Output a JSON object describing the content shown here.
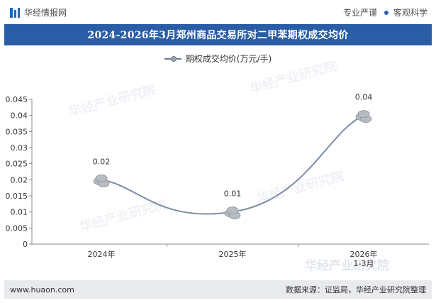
{
  "header": {
    "brand": "华经情报网",
    "tagline_left": "专业严谨",
    "tagline_right": "客观科学"
  },
  "title": "2024-2026年3月郑州商品交易所对二甲苯期权成交均价",
  "footer": {
    "url": "www.huaon.com",
    "source": "数据来源：证监局，华经产业研究院整理"
  },
  "watermark": "华经产业研究院",
  "colors": {
    "title_bar": "#2a5da6",
    "line": "#7d8ea6",
    "marker": "#b7bcc2"
  },
  "chart_data": {
    "type": "line",
    "categories": [
      "2024年",
      "2025年",
      "2026年\n1-3月"
    ],
    "series": [
      {
        "name": "期权成交均价(万元/手)",
        "values": [
          0.02,
          0.01,
          0.04
        ]
      }
    ],
    "data_labels": [
      "0.02",
      "0.01",
      "0.04"
    ],
    "yticks": [
      "0",
      "0.005",
      "0.01",
      "0.015",
      "0.02",
      "0.025",
      "0.03",
      "0.035",
      "0.04",
      "0.045"
    ],
    "ylim": [
      0,
      0.045
    ],
    "grid": false,
    "legend_position": "top-center",
    "smooth": true
  }
}
